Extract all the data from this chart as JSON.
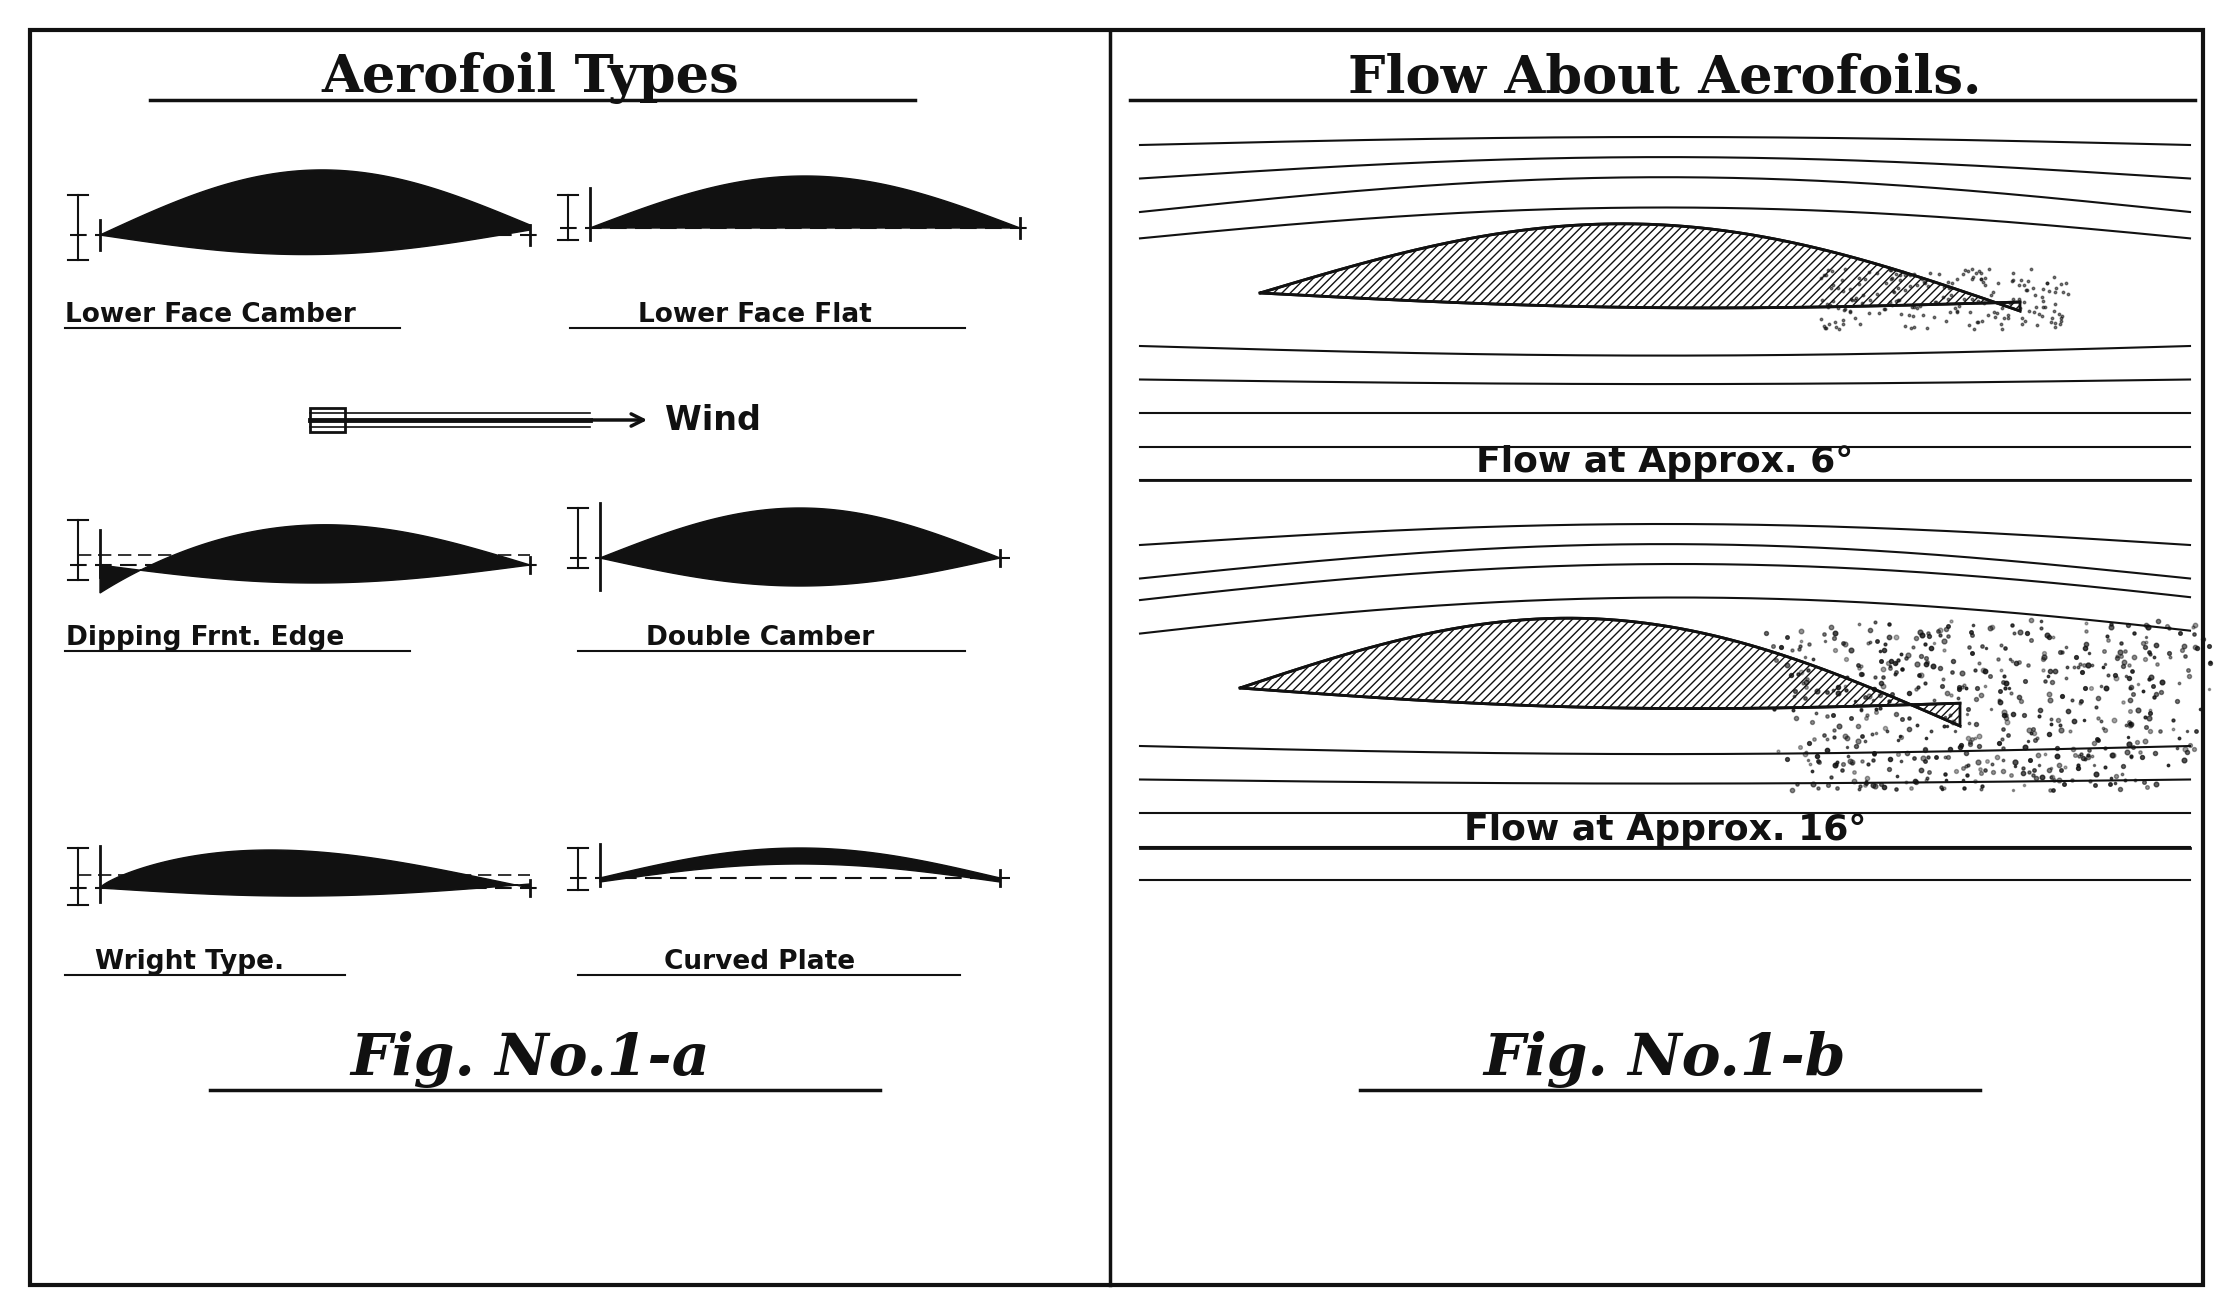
{
  "title_left": "Aerofoil Types",
  "title_right": "Flow About Aerofoils.",
  "bg_color": "#ffffff",
  "ink_color": "#111111",
  "labels": {
    "lower_face_camber": "Lower Face Camber",
    "lower_face_flat": "Lower Face Flat",
    "dipping_frnt_edge": "Dipping Frnt. Edge",
    "double_camber": "Double Camber",
    "wright_type": "Wright Type.",
    "curved_plate": "Curved Plate",
    "fig1a": "Fig. No.1-a",
    "flow_6": "Flow at Approx. 6°",
    "flow_16": "Flow at Approx. 16°",
    "fig1b": "Fig. No.1-b"
  }
}
